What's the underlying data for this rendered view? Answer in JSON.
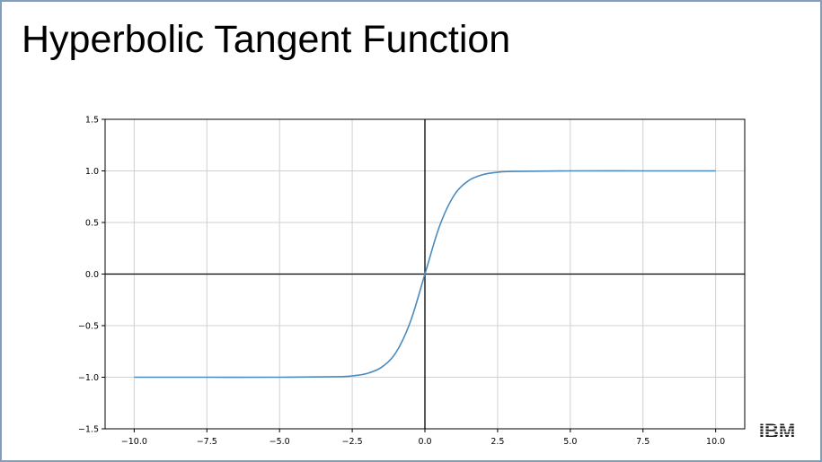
{
  "slide": {
    "title": "Hyperbolic Tangent Function"
  },
  "logo": {
    "text": "IBM",
    "color": "#1a1a1a"
  },
  "chart_data": {
    "type": "line",
    "title": "",
    "xlabel": "",
    "ylabel": "",
    "xlim": [
      -11.0,
      11.0
    ],
    "ylim": [
      -1.5,
      1.5
    ],
    "grid": true,
    "axis_lines_at_zero": true,
    "x_ticks": [
      -10.0,
      -7.5,
      -5.0,
      -2.5,
      0.0,
      2.5,
      5.0,
      7.5,
      10.0
    ],
    "x_tick_labels": [
      "−10.0",
      "−7.5",
      "−5.0",
      "−2.5",
      "0.0",
      "2.5",
      "5.0",
      "7.5",
      "10.0"
    ],
    "y_ticks": [
      -1.5,
      -1.0,
      -0.5,
      0.0,
      0.5,
      1.0,
      1.5
    ],
    "y_tick_labels": [
      "−1.5",
      "−1.0",
      "−0.5",
      "0.0",
      "0.5",
      "1.0",
      "1.5"
    ],
    "series": [
      {
        "color": "#4a8bbf",
        "x": [
          -10,
          -7.5,
          -5,
          -3,
          -2.5,
          -2,
          -1.5,
          -1,
          -0.5,
          0,
          0.5,
          1,
          1.5,
          2,
          2.5,
          3,
          5,
          7.5,
          10
        ],
        "y": [
          -1.0,
          -1.0,
          -1.0,
          -0.995,
          -0.987,
          -0.964,
          -0.905,
          -0.762,
          -0.462,
          0.0,
          0.462,
          0.762,
          0.905,
          0.964,
          0.987,
          0.995,
          1.0,
          1.0,
          1.0
        ]
      }
    ]
  }
}
